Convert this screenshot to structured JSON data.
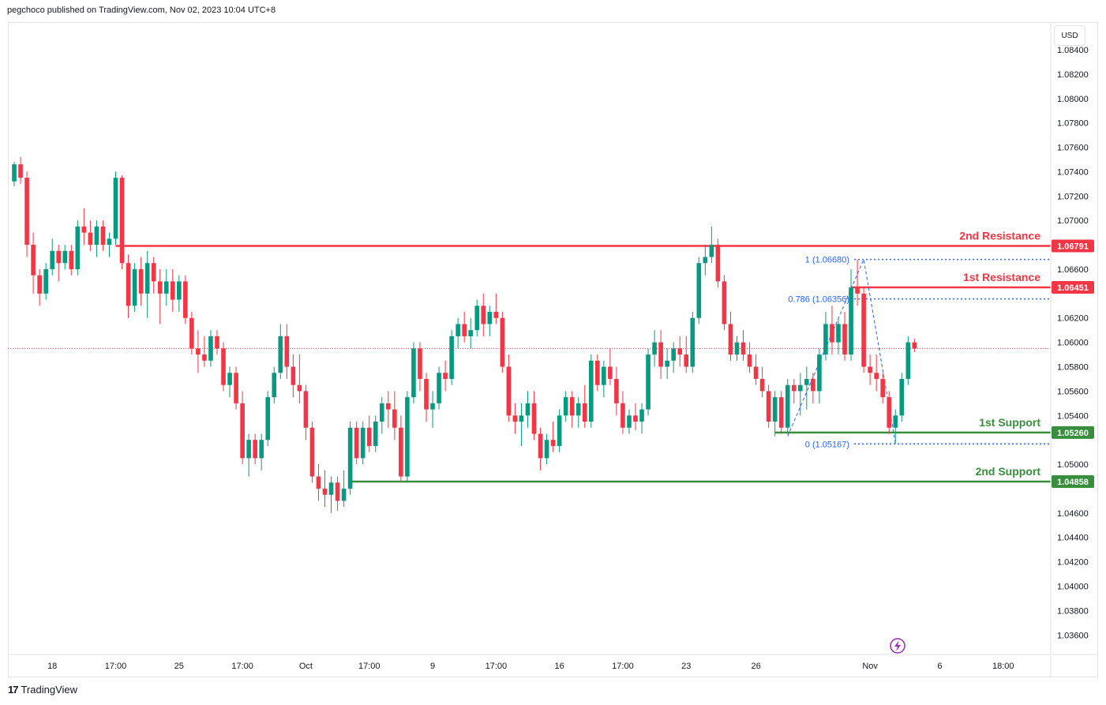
{
  "header": {
    "published_text": "pegchoco published on TradingView.com, Nov 02, 2023 10:04 UTC+8"
  },
  "footer": {
    "brand_mark": "17",
    "brand": "TradingView"
  },
  "colors": {
    "up": "#089981",
    "down": "#f23645",
    "resistance": "#f23645",
    "support": "#388e3c",
    "fib": "#2962ff",
    "grid": "#f0f3fa",
    "text": "#131722"
  },
  "icons": {
    "alert": "lightning-icon"
  },
  "chart_data": {
    "type": "candlestick",
    "currency": "USD",
    "y_axis": {
      "ylim": [
        1.0344,
        1.0862
      ],
      "ticks": [
        "1.08400",
        "1.08200",
        "1.08000",
        "1.07800",
        "1.07600",
        "1.07400",
        "1.07200",
        "1.07000",
        "1.06600",
        "1.06200",
        "1.06000",
        "1.05800",
        "1.05600",
        "1.05400",
        "1.05000",
        "1.04600",
        "1.04400",
        "1.04200",
        "1.04000",
        "1.03800",
        "1.03600"
      ],
      "tick_values": [
        1.084,
        1.082,
        1.08,
        1.078,
        1.076,
        1.074,
        1.072,
        1.07,
        1.066,
        1.062,
        1.06,
        1.058,
        1.056,
        1.054,
        1.05,
        1.046,
        1.044,
        1.042,
        1.04,
        1.038,
        1.036
      ]
    },
    "x_axis": {
      "ticks": [
        {
          "label": "18",
          "index": 6
        },
        {
          "label": "17:00",
          "index": 16
        },
        {
          "label": "25",
          "index": 26
        },
        {
          "label": "17:00",
          "index": 36
        },
        {
          "label": "Oct",
          "index": 46
        },
        {
          "label": "17:00",
          "index": 56
        },
        {
          "label": "9",
          "index": 66
        },
        {
          "label": "17:00",
          "index": 76
        },
        {
          "label": "16",
          "index": 86
        },
        {
          "label": "17:00",
          "index": 96
        },
        {
          "label": "23",
          "index": 106
        },
        {
          "label": "26",
          "index": 117
        },
        {
          "label": "Nov",
          "index": 135
        },
        {
          "label": "6",
          "index": 146
        },
        {
          "label": "18:00",
          "index": 156
        }
      ],
      "total_slots": 164
    },
    "levels": [
      {
        "name": "2nd Resistance",
        "value": 1.06791,
        "price_label": "1.06791",
        "type": "resistance",
        "start_index": 16
      },
      {
        "name": "1st Resistance",
        "value": 1.06451,
        "price_label": "1.06451",
        "type": "resistance",
        "start_index": 132
      },
      {
        "name": "1st Support",
        "value": 1.0526,
        "price_label": "1.05260",
        "type": "support",
        "start_index": 120
      },
      {
        "name": "2nd Support",
        "value": 1.04858,
        "price_label": "1.04858",
        "type": "support",
        "start_index": 53
      }
    ],
    "fib_levels": [
      {
        "label": "1 (1.06680)",
        "value": 1.0668
      },
      {
        "label": "0.786 (1.06356)",
        "value": 1.06356
      },
      {
        "label": "0 (1.05167)",
        "value": 1.05167
      }
    ],
    "fib_start_index": 133,
    "last_price": 1.0595,
    "candles": [
      [
        1.0732,
        1.0748,
        1.0728,
        1.0746
      ],
      [
        1.0746,
        1.0752,
        1.073,
        1.0735
      ],
      [
        1.0735,
        1.074,
        1.067,
        1.068
      ],
      [
        1.068,
        1.069,
        1.064,
        1.0655
      ],
      [
        1.0655,
        1.066,
        1.063,
        1.064
      ],
      [
        1.064,
        1.0665,
        1.0635,
        1.066
      ],
      [
        1.066,
        1.0685,
        1.0655,
        1.0675
      ],
      [
        1.0675,
        1.068,
        1.065,
        1.0665
      ],
      [
        1.0665,
        1.068,
        1.066,
        1.0675
      ],
      [
        1.0675,
        1.068,
        1.0655,
        1.066
      ],
      [
        1.066,
        1.07,
        1.0655,
        1.0695
      ],
      [
        1.0695,
        1.071,
        1.068,
        1.069
      ],
      [
        1.069,
        1.07,
        1.0675,
        1.068
      ],
      [
        1.068,
        1.07,
        1.067,
        1.0695
      ],
      [
        1.0695,
        1.07,
        1.0675,
        1.068
      ],
      [
        1.068,
        1.069,
        1.067,
        1.0685
      ],
      [
        1.0685,
        1.074,
        1.068,
        1.0735
      ],
      [
        1.0735,
        1.0737,
        1.066,
        1.0665
      ],
      [
        1.0665,
        1.0672,
        1.062,
        1.063
      ],
      [
        1.063,
        1.0665,
        1.0625,
        1.066
      ],
      [
        1.066,
        1.067,
        1.063,
        1.064
      ],
      [
        1.064,
        1.0675,
        1.062,
        1.0665
      ],
      [
        1.0665,
        1.067,
        1.064,
        1.065
      ],
      [
        1.065,
        1.066,
        1.0615,
        1.064
      ],
      [
        1.064,
        1.066,
        1.063,
        1.065
      ],
      [
        1.065,
        1.066,
        1.0625,
        1.0635
      ],
      [
        1.0635,
        1.0655,
        1.0625,
        1.065
      ],
      [
        1.065,
        1.0655,
        1.0615,
        1.062
      ],
      [
        1.062,
        1.0625,
        1.059,
        1.0595
      ],
      [
        1.0595,
        1.061,
        1.0575,
        1.059
      ],
      [
        1.059,
        1.0605,
        1.058,
        1.0585
      ],
      [
        1.0585,
        1.061,
        1.058,
        1.0605
      ],
      [
        1.0605,
        1.061,
        1.059,
        1.0595
      ],
      [
        1.0595,
        1.06,
        1.056,
        1.0565
      ],
      [
        1.0565,
        1.058,
        1.0555,
        1.0575
      ],
      [
        1.0575,
        1.058,
        1.0545,
        1.055
      ],
      [
        1.055,
        1.056,
        1.05,
        1.0505
      ],
      [
        1.0505,
        1.0525,
        1.049,
        1.052
      ],
      [
        1.052,
        1.0525,
        1.05,
        1.0505
      ],
      [
        1.0505,
        1.0525,
        1.0495,
        1.052
      ],
      [
        1.052,
        1.056,
        1.0515,
        1.0555
      ],
      [
        1.0555,
        1.058,
        1.055,
        1.0575
      ],
      [
        1.0575,
        1.0615,
        1.057,
        1.0605
      ],
      [
        1.0605,
        1.0615,
        1.057,
        1.058
      ],
      [
        1.058,
        1.059,
        1.0555,
        1.0565
      ],
      [
        1.0565,
        1.059,
        1.055,
        1.056
      ],
      [
        1.056,
        1.0565,
        1.052,
        1.053
      ],
      [
        1.053,
        1.0535,
        1.0485,
        1.049
      ],
      [
        1.049,
        1.05,
        1.047,
        1.048
      ],
      [
        1.048,
        1.0495,
        1.0465,
        1.0475
      ],
      [
        1.0475,
        1.049,
        1.046,
        1.0485
      ],
      [
        1.0485,
        1.049,
        1.0462,
        1.047
      ],
      [
        1.047,
        1.0495,
        1.0465,
        1.048
      ],
      [
        1.048,
        1.0535,
        1.0475,
        1.053
      ],
      [
        1.053,
        1.0535,
        1.05,
        1.0505
      ],
      [
        1.0505,
        1.0535,
        1.05,
        1.053
      ],
      [
        1.053,
        1.054,
        1.051,
        1.0515
      ],
      [
        1.0515,
        1.054,
        1.051,
        1.0535
      ],
      [
        1.0535,
        1.0555,
        1.0525,
        1.055
      ],
      [
        1.055,
        1.056,
        1.053,
        1.0545
      ],
      [
        1.0545,
        1.056,
        1.052,
        1.053
      ],
      [
        1.053,
        1.054,
        1.0485,
        1.049
      ],
      [
        1.049,
        1.056,
        1.0485,
        1.0555
      ],
      [
        1.0555,
        1.06,
        1.055,
        1.0595
      ],
      [
        1.0595,
        1.06,
        1.056,
        1.057
      ],
      [
        1.057,
        1.0575,
        1.0535,
        1.0545
      ],
      [
        1.0545,
        1.056,
        1.053,
        1.055
      ],
      [
        1.055,
        1.058,
        1.0545,
        1.0575
      ],
      [
        1.0575,
        1.0585,
        1.056,
        1.057
      ],
      [
        1.057,
        1.061,
        1.0565,
        1.0605
      ],
      [
        1.0605,
        1.062,
        1.0595,
        1.0615
      ],
      [
        1.0615,
        1.0625,
        1.06,
        1.0605
      ],
      [
        1.0605,
        1.062,
        1.0595,
        1.061
      ],
      [
        1.061,
        1.0635,
        1.0605,
        1.063
      ],
      [
        1.063,
        1.064,
        1.0605,
        1.0615
      ],
      [
        1.0615,
        1.063,
        1.0605,
        1.0625
      ],
      [
        1.0625,
        1.064,
        1.0615,
        1.062
      ],
      [
        1.062,
        1.0625,
        1.0575,
        1.058
      ],
      [
        1.058,
        1.059,
        1.0535,
        1.054
      ],
      [
        1.054,
        1.055,
        1.0525,
        1.0535
      ],
      [
        1.0535,
        1.055,
        1.0515,
        1.054
      ],
      [
        1.054,
        1.056,
        1.053,
        1.055
      ],
      [
        1.055,
        1.056,
        1.052,
        1.0525
      ],
      [
        1.0525,
        1.053,
        1.0495,
        1.0505
      ],
      [
        1.0505,
        1.0525,
        1.05,
        1.052
      ],
      [
        1.052,
        1.0535,
        1.051,
        1.0515
      ],
      [
        1.0515,
        1.0545,
        1.051,
        1.054
      ],
      [
        1.054,
        1.056,
        1.0535,
        1.0555
      ],
      [
        1.0555,
        1.056,
        1.053,
        1.054
      ],
      [
        1.054,
        1.0555,
        1.053,
        1.055
      ],
      [
        1.055,
        1.0565,
        1.053,
        1.0535
      ],
      [
        1.0535,
        1.059,
        1.053,
        1.0585
      ],
      [
        1.0585,
        1.059,
        1.056,
        1.0565
      ],
      [
        1.0565,
        1.0585,
        1.0555,
        1.058
      ],
      [
        1.058,
        1.0595,
        1.0565,
        1.057
      ],
      [
        1.057,
        1.058,
        1.054,
        1.055
      ],
      [
        1.055,
        1.056,
        1.0525,
        1.053
      ],
      [
        1.053,
        1.0545,
        1.0525,
        1.054
      ],
      [
        1.054,
        1.055,
        1.0528,
        1.0535
      ],
      [
        1.0535,
        1.055,
        1.0525,
        1.0545
      ],
      [
        1.0545,
        1.0595,
        1.054,
        1.059
      ],
      [
        1.059,
        1.061,
        1.058,
        1.06
      ],
      [
        1.06,
        1.061,
        1.057,
        1.058
      ],
      [
        1.058,
        1.0595,
        1.057,
        1.0585
      ],
      [
        1.0585,
        1.06,
        1.0575,
        1.0595
      ],
      [
        1.0595,
        1.0605,
        1.058,
        1.059
      ],
      [
        1.059,
        1.0605,
        1.0575,
        1.058
      ],
      [
        1.058,
        1.0625,
        1.0575,
        1.062
      ],
      [
        1.062,
        1.067,
        1.0615,
        1.0665
      ],
      [
        1.0665,
        1.068,
        1.0655,
        1.067
      ],
      [
        1.067,
        1.0695,
        1.0665,
        1.068
      ],
      [
        1.068,
        1.0685,
        1.0645,
        1.065
      ],
      [
        1.065,
        1.0655,
        1.061,
        1.0615
      ],
      [
        1.0615,
        1.0625,
        1.0585,
        1.059
      ],
      [
        1.059,
        1.0605,
        1.0585,
        1.06
      ],
      [
        1.06,
        1.061,
        1.0585,
        1.059
      ],
      [
        1.059,
        1.06,
        1.0575,
        1.058
      ],
      [
        1.058,
        1.059,
        1.0565,
        1.057
      ],
      [
        1.057,
        1.058,
        1.0555,
        1.056
      ],
      [
        1.056,
        1.0565,
        1.053,
        1.0535
      ],
      [
        1.0535,
        1.056,
        1.0523,
        1.0555
      ],
      [
        1.0555,
        1.056,
        1.0525,
        1.053
      ],
      [
        1.053,
        1.057,
        1.0525,
        1.0565
      ],
      [
        1.0565,
        1.057,
        1.055,
        1.056
      ],
      [
        1.056,
        1.0575,
        1.054,
        1.0565
      ],
      [
        1.0565,
        1.058,
        1.0545,
        1.057
      ],
      [
        1.057,
        1.0575,
        1.055,
        1.056
      ],
      [
        1.056,
        1.0595,
        1.055,
        1.059
      ],
      [
        1.059,
        1.0625,
        1.0585,
        1.0615
      ],
      [
        1.0615,
        1.063,
        1.059,
        1.06
      ],
      [
        1.06,
        1.062,
        1.059,
        1.0615
      ],
      [
        1.0615,
        1.0625,
        1.0585,
        1.059
      ],
      [
        1.059,
        1.066,
        1.0585,
        1.0645
      ],
      [
        1.0645,
        1.0668,
        1.063,
        1.064
      ],
      [
        1.064,
        1.0645,
        1.0575,
        1.058
      ],
      [
        1.058,
        1.059,
        1.0565,
        1.0575
      ],
      [
        1.0575,
        1.059,
        1.056,
        1.057
      ],
      [
        1.057,
        1.0575,
        1.055,
        1.0555
      ],
      [
        1.0555,
        1.056,
        1.0525,
        1.053
      ],
      [
        1.053,
        1.0545,
        1.0517,
        1.054
      ],
      [
        1.054,
        1.0575,
        1.0535,
        1.057
      ],
      [
        1.057,
        1.0605,
        1.0565,
        1.06
      ],
      [
        1.06,
        1.0603,
        1.0592,
        1.0595
      ]
    ]
  }
}
